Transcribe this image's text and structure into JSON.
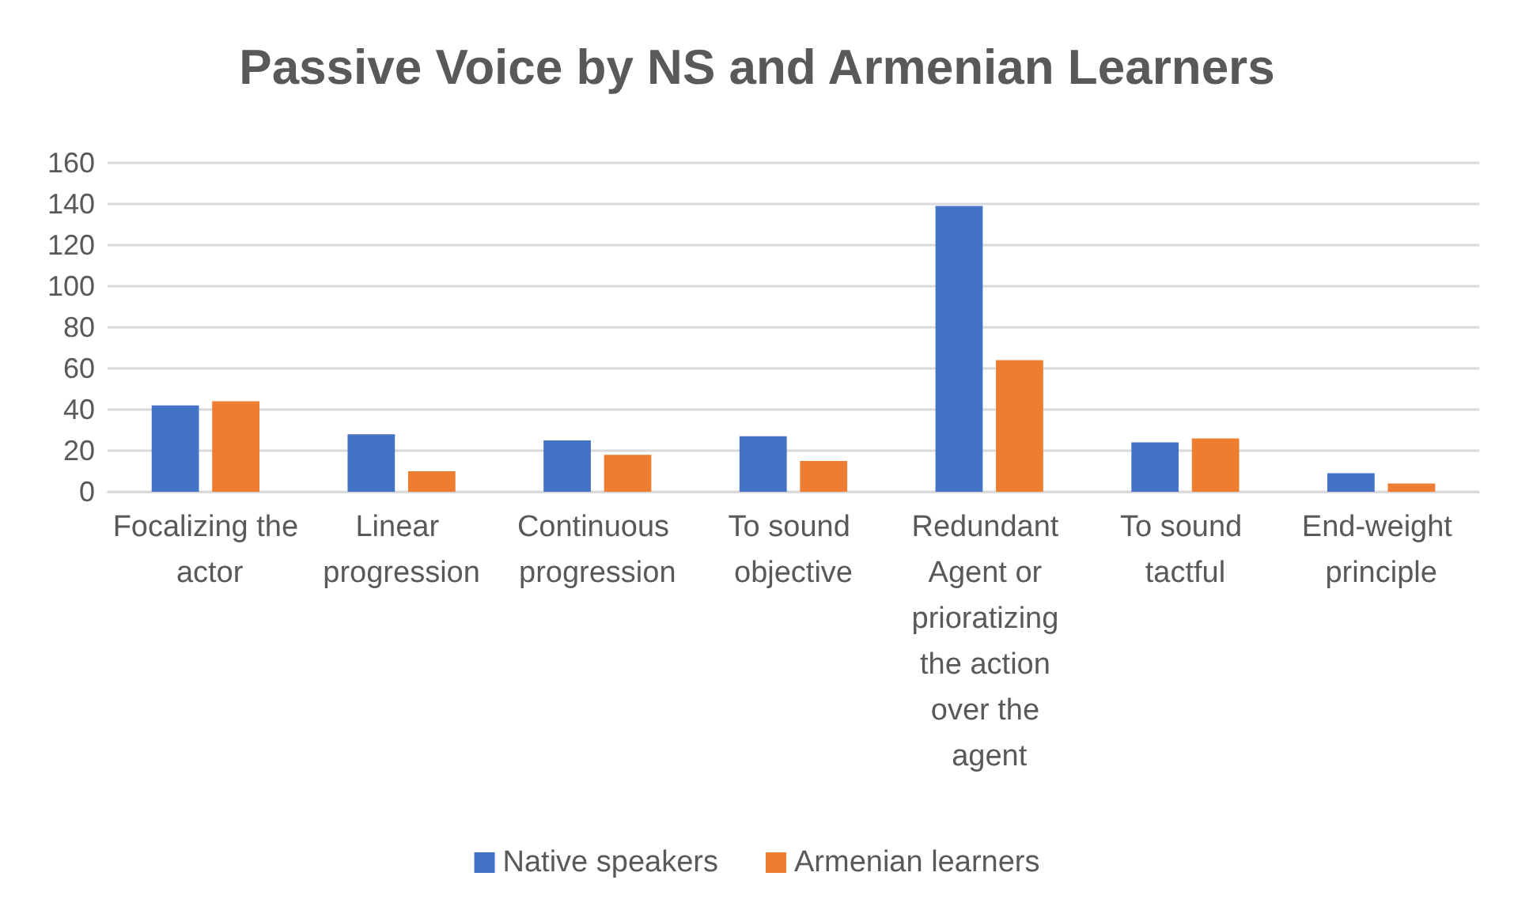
{
  "chart_data": {
    "type": "bar",
    "title": "Passive Voice by NS and Armenian Learners",
    "categories": [
      "Focalizing the actor",
      "Linear progression",
      "Continuous progression",
      "To sound objective",
      "Redundant Agent or prioratizing the action over the agent",
      "To sound tactful",
      "End-weight principle"
    ],
    "series": [
      {
        "name": "Native speakers",
        "color": "#4472c4",
        "values": [
          42,
          28,
          25,
          27,
          139,
          24,
          9
        ]
      },
      {
        "name": "Armenian learners",
        "color": "#ed7d31",
        "values": [
          44,
          10,
          18,
          15,
          64,
          26,
          4
        ]
      }
    ],
    "ylim": [
      0,
      160
    ],
    "yticks": [
      0,
      20,
      40,
      60,
      80,
      100,
      120,
      140,
      160
    ],
    "grid": "y",
    "legend": "bottom"
  }
}
